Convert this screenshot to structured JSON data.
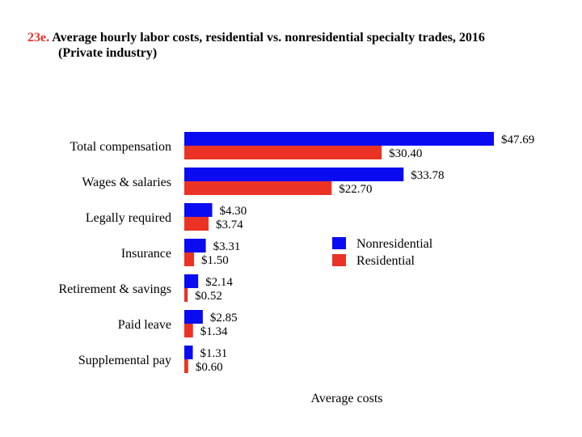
{
  "title": {
    "prefix": "23e.",
    "main": "Average hourly labor costs, residential vs. nonresidential specialty trades, 2016",
    "subtitle": "(Private industry)"
  },
  "colors": {
    "nonresidential": "#0b0bf2",
    "residential": "#ea3324"
  },
  "chart_data": {
    "type": "bar",
    "orientation": "horizontal",
    "categories": [
      "Total compensation",
      "Wages & salaries",
      "Legally required",
      "Insurance",
      "Retirement & savings",
      "Paid leave",
      "Supplemental pay"
    ],
    "series": [
      {
        "name": "Nonresidential",
        "color": "#0b0bf2",
        "values": [
          47.69,
          33.78,
          4.3,
          3.31,
          2.14,
          2.85,
          1.31
        ],
        "labels": [
          "$47.69",
          "$33.78",
          "$4.30",
          "$3.31",
          "$2.14",
          "$2.85",
          "$1.31"
        ]
      },
      {
        "name": "Residential",
        "color": "#ea3324",
        "values": [
          30.4,
          22.7,
          3.74,
          1.5,
          0.52,
          1.34,
          0.6
        ],
        "labels": [
          "$30.40",
          "$22.70",
          "$3.74",
          "$1.50",
          "$0.52",
          "$1.34",
          "$0.60"
        ]
      }
    ],
    "xlabel": "Average costs",
    "xlim": [
      0,
      47.69
    ],
    "grid": false,
    "legend_position": "right-center"
  }
}
